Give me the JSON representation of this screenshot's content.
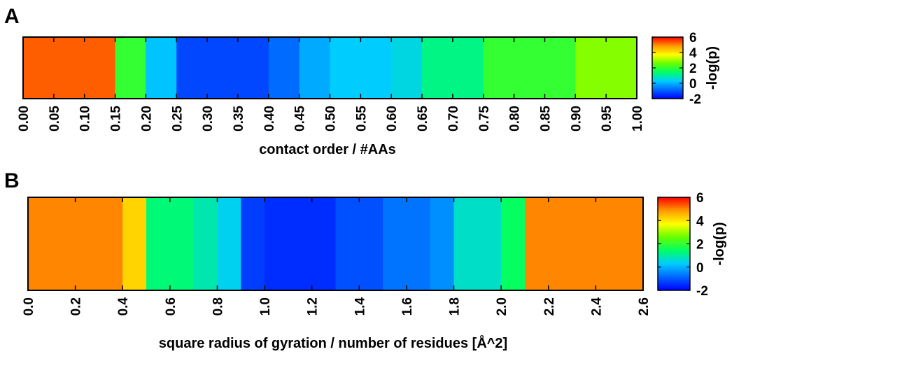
{
  "colors": {
    "scale": [
      "#0000ff",
      "#0066ff",
      "#00ccff",
      "#00ff66",
      "#66ff00",
      "#ffff00",
      "#ff9900",
      "#ff0000"
    ],
    "axis": "#000000"
  },
  "chart_data": [
    {
      "type": "heatmap",
      "panel_label": "A",
      "xlabel": "contact order / #AAs",
      "x_ticks": [
        "0.00",
        "0.05",
        "0.10",
        "0.15",
        "0.20",
        "0.25",
        "0.30",
        "0.35",
        "0.40",
        "0.45",
        "0.50",
        "0.55",
        "0.60",
        "0.65",
        "0.70",
        "0.75",
        "0.80",
        "0.85",
        "0.90",
        "0.95",
        "1.00"
      ],
      "xlim": [
        0,
        1
      ],
      "bins": [
        {
          "x0": 0.0,
          "x1": 0.15,
          "value": 5.3
        },
        {
          "x0": 0.15,
          "x1": 0.2,
          "value": 2.0
        },
        {
          "x0": 0.2,
          "x1": 0.25,
          "value": 0.2
        },
        {
          "x0": 0.25,
          "x1": 0.4,
          "value": -1.2
        },
        {
          "x0": 0.4,
          "x1": 0.45,
          "value": -0.8
        },
        {
          "x0": 0.45,
          "x1": 0.5,
          "value": -0.1
        },
        {
          "x0": 0.5,
          "x1": 0.6,
          "value": 0.3
        },
        {
          "x0": 0.6,
          "x1": 0.65,
          "value": 0.5
        },
        {
          "x0": 0.65,
          "x1": 0.75,
          "value": 1.2
        },
        {
          "x0": 0.75,
          "x1": 0.9,
          "value": 2.0
        },
        {
          "x0": 0.9,
          "x1": 1.0,
          "value": 2.8
        }
      ],
      "colorbar": {
        "label": "-log(p)",
        "range": [
          -2,
          6
        ],
        "ticks": [
          "-2",
          "0",
          "2",
          "4",
          "6"
        ]
      }
    },
    {
      "type": "heatmap",
      "panel_label": "B",
      "xlabel": "square radius of gyration / number of residues [Å^2]",
      "x_ticks": [
        "0.0",
        "0.2",
        "0.4",
        "0.6",
        "0.8",
        "1.0",
        "1.2",
        "1.4",
        "1.6",
        "1.8",
        "2.0",
        "2.2",
        "2.4",
        "2.6"
      ],
      "xlim": [
        0,
        2.6
      ],
      "bins": [
        {
          "x0": 0.0,
          "x1": 0.4,
          "value": 5.0
        },
        {
          "x0": 0.4,
          "x1": 0.5,
          "value": 4.2
        },
        {
          "x0": 0.5,
          "x1": 0.7,
          "value": 1.3
        },
        {
          "x0": 0.7,
          "x1": 0.8,
          "value": 0.9
        },
        {
          "x0": 0.8,
          "x1": 0.9,
          "value": 0.4
        },
        {
          "x0": 0.9,
          "x1": 1.0,
          "value": -1.3
        },
        {
          "x0": 1.0,
          "x1": 1.3,
          "value": -1.5
        },
        {
          "x0": 1.3,
          "x1": 1.5,
          "value": -1.1
        },
        {
          "x0": 1.5,
          "x1": 1.7,
          "value": -0.7
        },
        {
          "x0": 1.7,
          "x1": 1.8,
          "value": -0.4
        },
        {
          "x0": 1.8,
          "x1": 2.0,
          "value": 0.7
        },
        {
          "x0": 2.0,
          "x1": 2.1,
          "value": 1.5
        },
        {
          "x0": 2.1,
          "x1": 2.6,
          "value": 5.0
        }
      ],
      "colorbar": {
        "label": "-log(p)",
        "range": [
          -2,
          6
        ],
        "ticks": [
          "-2",
          "0",
          "2",
          "4",
          "6"
        ]
      }
    }
  ]
}
